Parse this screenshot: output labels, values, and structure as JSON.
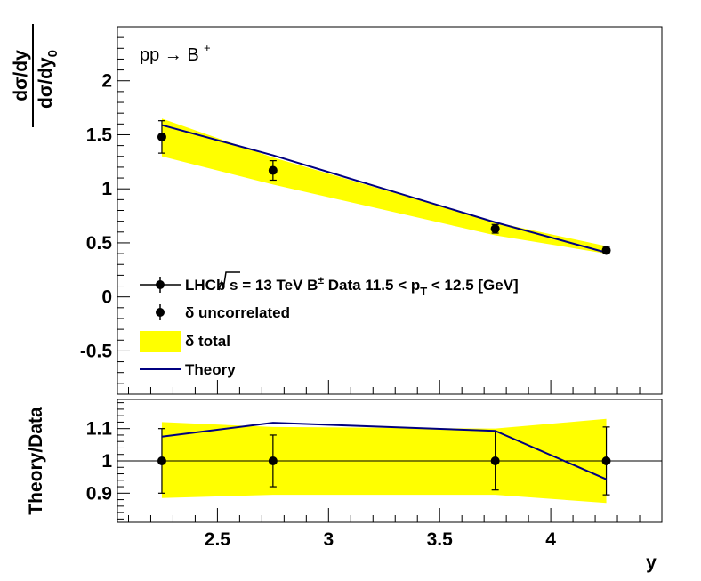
{
  "chart_data": [
    {
      "type": "scatter",
      "panel": "main",
      "process_label": "pp → B±",
      "ylabel": {
        "numerator": "dσ/dy",
        "denominator": "dσ/dy",
        "denominator_sub": "0"
      },
      "xlim": [
        2.05,
        4.5
      ],
      "ylim": [
        -0.9,
        2.5
      ],
      "yticks": [
        -0.5,
        0,
        0.5,
        1,
        1.5,
        2
      ],
      "ytick_labels": [
        "-0.5",
        "0",
        "0.5",
        "1",
        "1.5",
        "2"
      ],
      "grid": false,
      "legend_position": "bottom-left",
      "series": [
        {
          "name": "LHCb  √s = 13 TeV B± Data 11.5 < pT < 12.5 [GeV]",
          "legend": {
            "main": "LHCb  s = 13 TeV B",
            "sup": "±",
            "mid": " Data 11.5 < p",
            "sub": "T",
            "tail": " < 12.5 [GeV]"
          },
          "marker": "circle",
          "color": "#000000",
          "x": [
            2.25,
            2.75,
            3.75,
            4.25
          ],
          "y": [
            1.48,
            1.17,
            0.63,
            0.43
          ],
          "err_uncorrelated": [
            0.15,
            0.09,
            0.04,
            0.03
          ]
        },
        {
          "name": "δ uncorrelated",
          "marker": "circle-errorbar",
          "color": "#000000"
        },
        {
          "name": "δ total",
          "type": "band",
          "color": "#ffff00",
          "x": [
            2.25,
            2.75,
            3.75,
            4.25
          ],
          "lower": [
            1.3,
            1.04,
            0.57,
            0.4
          ],
          "upper": [
            1.65,
            1.29,
            0.69,
            0.47
          ]
        },
        {
          "name": "Theory",
          "type": "line",
          "color": "#000080",
          "x": [
            2.25,
            2.75,
            3.75,
            4.25
          ],
          "y": [
            1.59,
            1.31,
            0.69,
            0.41
          ]
        }
      ]
    },
    {
      "type": "scatter",
      "panel": "ratio",
      "xlabel": "y",
      "ylabel": "Theory/Data",
      "xlim": [
        2.05,
        4.5
      ],
      "xticks": [
        2.5,
        3,
        3.5,
        4
      ],
      "xtick_labels": [
        "2.5",
        "3",
        "3.5",
        "4"
      ],
      "ylim": [
        0.81,
        1.19
      ],
      "yticks": [
        0.9,
        1,
        1.1
      ],
      "ytick_labels": [
        "0.9",
        "1",
        "1.1"
      ],
      "reference_line": 1,
      "grid": false,
      "band": {
        "color": "#ffff00",
        "x": [
          2.25,
          2.75,
          3.75,
          4.25
        ],
        "lower": [
          0.885,
          0.895,
          0.895,
          0.87
        ],
        "upper": [
          1.12,
          1.105,
          1.1,
          1.13
        ]
      },
      "points": {
        "x": [
          2.25,
          2.75,
          3.75,
          4.25
        ],
        "y": [
          1,
          1,
          1,
          1
        ],
        "err": [
          0.1,
          0.08,
          0.09,
          0.105
        ]
      },
      "theory": {
        "color": "#000080",
        "x": [
          2.25,
          2.75,
          3.75,
          4.25
        ],
        "y": [
          1.075,
          1.118,
          1.093,
          0.943
        ]
      }
    }
  ]
}
